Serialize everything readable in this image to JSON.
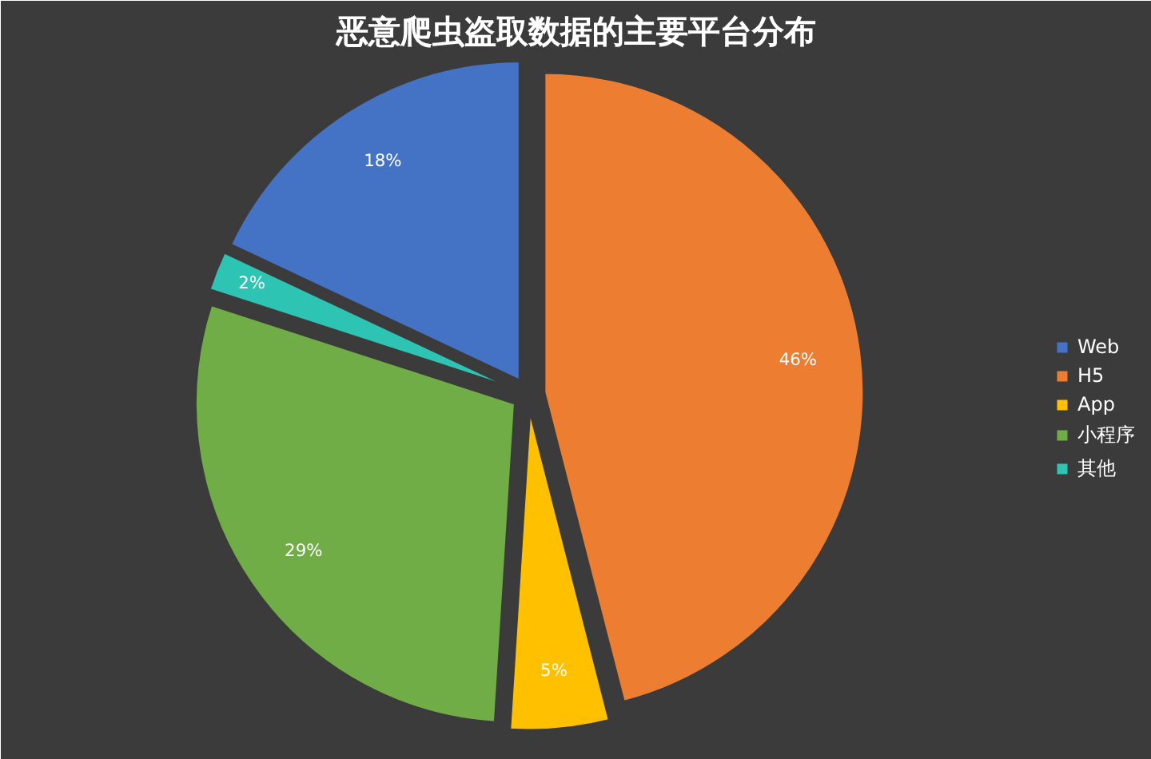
{
  "chart_data": {
    "type": "pie",
    "title": "恶意爬虫盗取数据的主要平台分布",
    "categories": [
      "Web",
      "H5",
      "App",
      "小程序",
      "其他"
    ],
    "values": [
      18,
      46,
      5,
      29,
      2
    ],
    "colors": [
      "#4472c4",
      "#ed7d31",
      "#ffc000",
      "#70ad47",
      "#2ec4b4"
    ],
    "value_labels": [
      "18%",
      "46%",
      "5%",
      "29%",
      "2%"
    ],
    "legend": "right"
  }
}
